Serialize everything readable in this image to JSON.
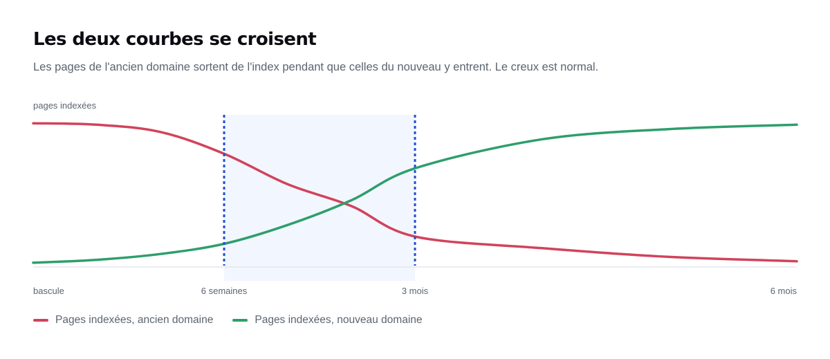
{
  "title": "Les deux courbes se croisent",
  "subtitle": "Les pages de l'ancien domaine sortent de l'index pendant que celles du nouveau y entrent. Le creux est normal.",
  "colors": {
    "old": "#d1435b",
    "new": "#2e9e6b",
    "marker": "#1f4fd1",
    "band": "#f2f6fe",
    "baseline": "#e3e6ec"
  },
  "chart_data": {
    "type": "line",
    "title": "Les deux courbes se croisent",
    "ylabel": "pages indexées",
    "xlabel": "",
    "x_ticks": [
      {
        "label": "bascule",
        "weeks": 0
      },
      {
        "label": "6 semaines",
        "weeks": 6
      },
      {
        "label": "3 mois",
        "weeks": 12
      },
      {
        "label": "6 mois",
        "weeks": 24
      }
    ],
    "xlim": [
      0,
      24
    ],
    "ylim": [
      0,
      100
    ],
    "highlight_band": {
      "from": 6,
      "to": 12
    },
    "grid": false,
    "legend_position": "bottom-left",
    "series": [
      {
        "name": "Pages indexées, ancien domaine",
        "color": "#d1435b",
        "points": [
          [
            0,
            98
          ],
          [
            2,
            97
          ],
          [
            4,
            92
          ],
          [
            6,
            77
          ],
          [
            8,
            56
          ],
          [
            10,
            41
          ],
          [
            12,
            20
          ],
          [
            16,
            12
          ],
          [
            20,
            6
          ],
          [
            24,
            3
          ]
        ]
      },
      {
        "name": "Pages indexées, nouveau domaine",
        "color": "#2e9e6b",
        "points": [
          [
            0,
            2
          ],
          [
            2,
            4
          ],
          [
            4,
            8
          ],
          [
            6,
            15
          ],
          [
            8,
            28
          ],
          [
            10,
            45
          ],
          [
            12,
            67
          ],
          [
            16,
            87
          ],
          [
            20,
            94
          ],
          [
            24,
            97
          ]
        ]
      }
    ]
  }
}
